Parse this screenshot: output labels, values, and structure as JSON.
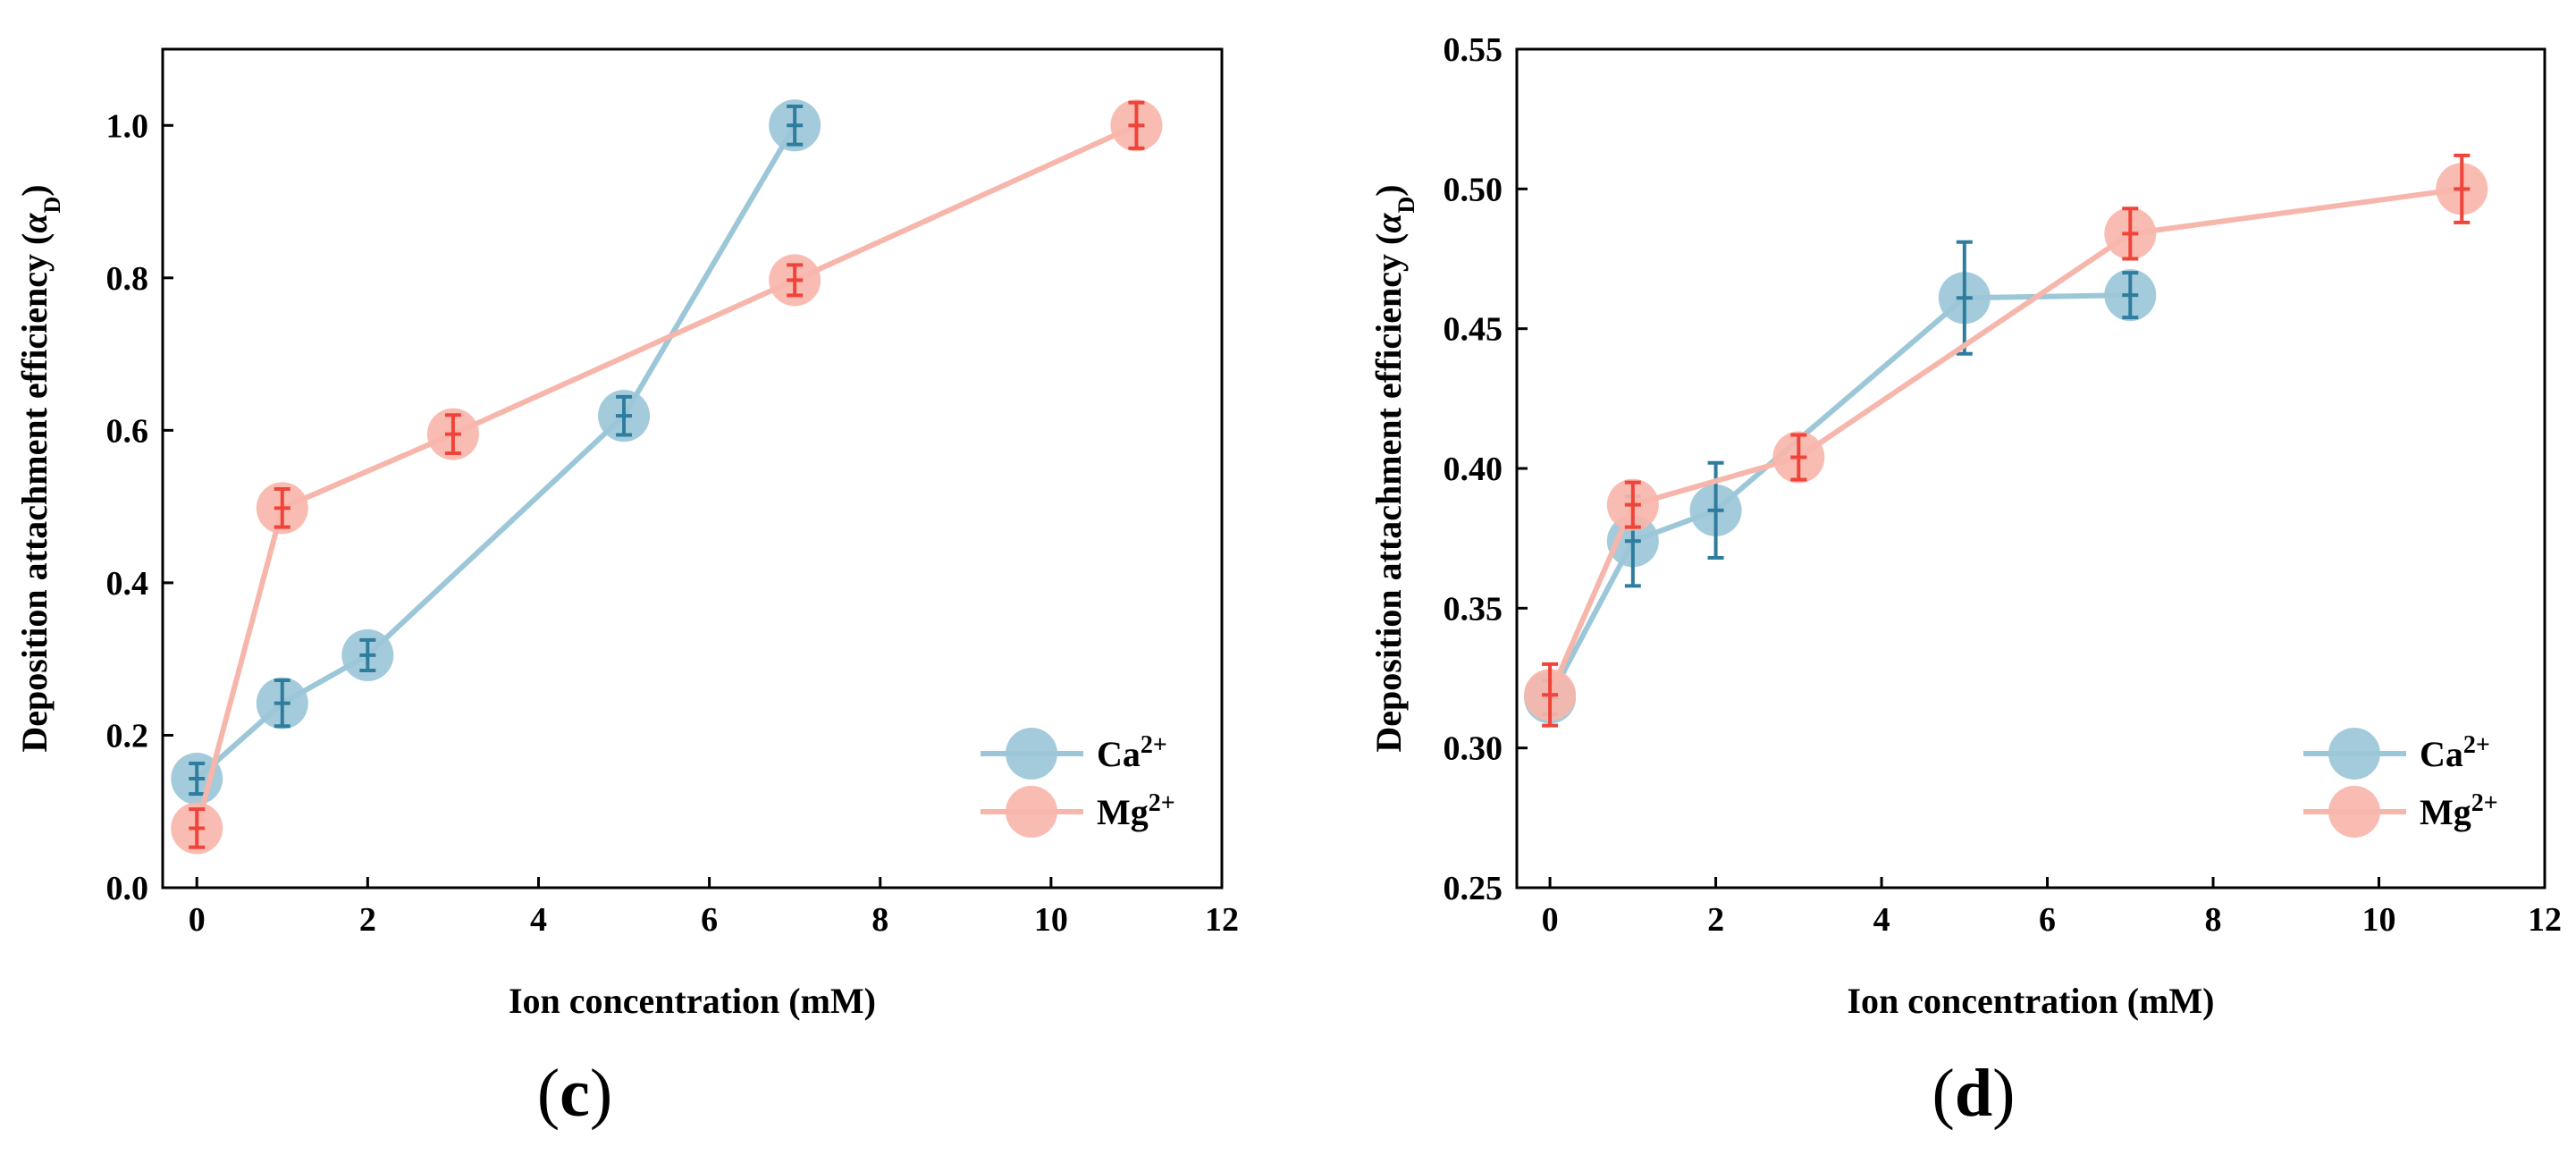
{
  "figure": {
    "panels": [
      {
        "id": "c",
        "label": "c"
      },
      {
        "id": "d",
        "label": "d"
      }
    ]
  },
  "chart_data": [
    {
      "type": "line",
      "panel": "c",
      "xlabel": "Ion concentration (mM)",
      "ylabel": "Deposition attachment efficiency (α_D)",
      "xlim": [
        -0.4,
        12
      ],
      "ylim": [
        0,
        1.1
      ],
      "xticks": [
        0,
        2,
        4,
        6,
        8,
        10,
        12
      ],
      "yticks": [
        0.0,
        0.2,
        0.4,
        0.6,
        0.8,
        1.0
      ],
      "ytick_labels": [
        "0.0",
        "0.2",
        "0.4",
        "0.6",
        "0.8",
        "1.0"
      ],
      "grid": false,
      "legend_position": "bottom-right",
      "series": [
        {
          "name": "Ca2+",
          "color": "#9cc7d8",
          "err_color": "#2f7d9e",
          "x": [
            0,
            1,
            2,
            5,
            7
          ],
          "y": [
            0.143,
            0.242,
            0.305,
            0.619,
            1.0
          ],
          "err": [
            0.02,
            0.03,
            0.02,
            0.025,
            0.025
          ]
        },
        {
          "name": "Mg2+",
          "color": "#f7b6ab",
          "err_color": "#f0443a",
          "x": [
            0,
            1,
            3,
            7,
            11
          ],
          "y": [
            0.078,
            0.498,
            0.595,
            0.797,
            1.0
          ],
          "err": [
            0.025,
            0.025,
            0.025,
            0.02,
            0.03
          ]
        }
      ]
    },
    {
      "type": "line",
      "panel": "d",
      "xlabel": "Ion concentration (mM)",
      "ylabel": "Deposition attachment efficiency (α_D)",
      "xlim": [
        -0.4,
        12
      ],
      "ylim": [
        0.25,
        0.55
      ],
      "xticks": [
        0,
        2,
        4,
        6,
        8,
        10,
        12
      ],
      "yticks": [
        0.25,
        0.3,
        0.35,
        0.4,
        0.45,
        0.5,
        0.55
      ],
      "ytick_labels": [
        "0.25",
        "0.30",
        "0.35",
        "0.40",
        "0.45",
        "0.50",
        "0.55"
      ],
      "grid": false,
      "legend_position": "bottom-right",
      "series": [
        {
          "name": "Ca2+",
          "color": "#9cc7d8",
          "err_color": "#2f7d9e",
          "x": [
            0,
            1,
            2,
            5,
            7
          ],
          "y": [
            0.318,
            0.374,
            0.385,
            0.461,
            0.462
          ],
          "err": [
            0.006,
            0.016,
            0.017,
            0.02,
            0.008
          ]
        },
        {
          "name": "Mg2+",
          "color": "#f7b6ab",
          "err_color": "#f0443a",
          "x": [
            0,
            1,
            3,
            7,
            11
          ],
          "y": [
            0.319,
            0.387,
            0.404,
            0.484,
            0.5
          ],
          "err": [
            0.011,
            0.008,
            0.008,
            0.009,
            0.012
          ]
        }
      ]
    }
  ]
}
